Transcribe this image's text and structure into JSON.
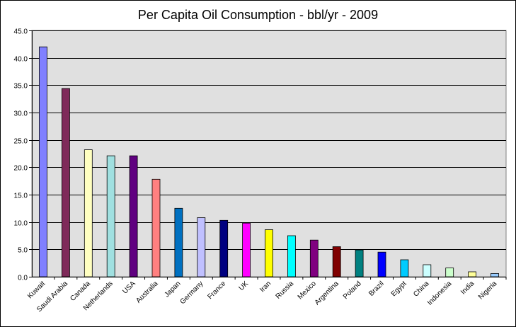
{
  "chart_data": {
    "type": "bar",
    "title": "Per Capita Oil Consumption - bbl/yr - 2009",
    "xlabel": "",
    "ylabel": "",
    "ylim": [
      0,
      45
    ],
    "yticks": [
      "0.0",
      "5.0",
      "10.0",
      "15.0",
      "20.0",
      "25.0",
      "30.0",
      "35.0",
      "40.0",
      "45.0"
    ],
    "grid": true,
    "legend": "none",
    "categories": [
      "Kuwait",
      "Saudi Arabia",
      "Canada",
      "Netherlands",
      "USA",
      "Australia",
      "Japan",
      "Germany",
      "France",
      "UK",
      "Iran",
      "Russia",
      "Mexico",
      "Argentina",
      "Poland",
      "Brazil",
      "Egypt",
      "China",
      "Indonesia",
      "India",
      "Nigeria"
    ],
    "values": [
      42.0,
      34.4,
      23.2,
      22.1,
      22.1,
      17.8,
      12.5,
      10.8,
      10.3,
      9.8,
      8.6,
      7.5,
      6.7,
      5.5,
      4.9,
      4.5,
      3.1,
      2.2,
      1.6,
      0.9,
      0.6
    ],
    "colors": [
      "#8080ff",
      "#7f2a5a",
      "#ffffc0",
      "#a0e0e0",
      "#600080",
      "#ff8080",
      "#0070c0",
      "#c0c0ff",
      "#000080",
      "#ff00ff",
      "#ffff00",
      "#00ffff",
      "#800080",
      "#800000",
      "#008080",
      "#0000ff",
      "#00ccff",
      "#ccffff",
      "#ccffcc",
      "#ffff99",
      "#99ccff"
    ],
    "plot_background": "#e0e0e0"
  }
}
